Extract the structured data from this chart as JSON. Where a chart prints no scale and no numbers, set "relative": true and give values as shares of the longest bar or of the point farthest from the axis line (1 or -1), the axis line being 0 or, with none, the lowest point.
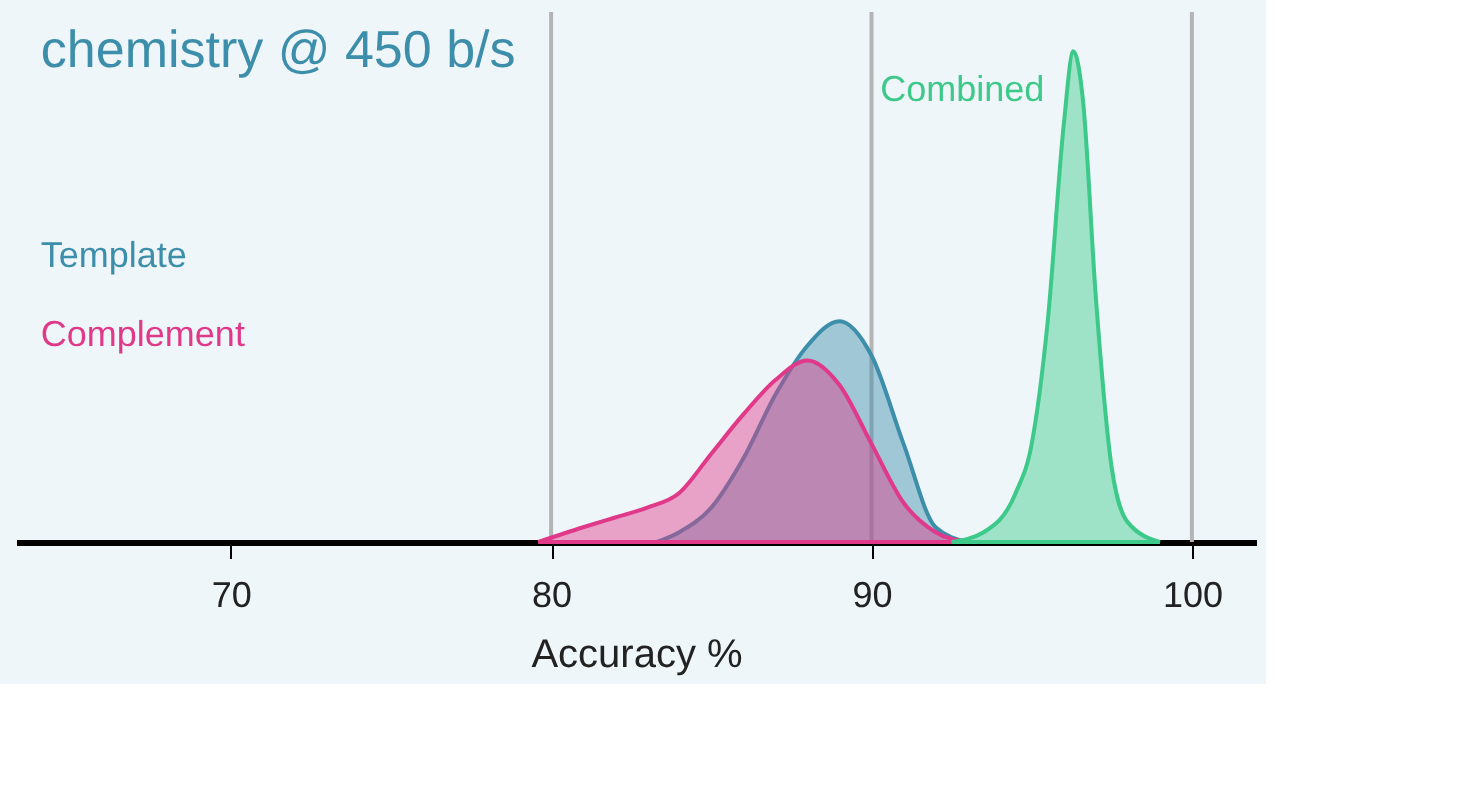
{
  "chart_data": {
    "type": "area",
    "title": "chemistry @ 450 b/s",
    "xlabel": "Accuracy %",
    "relative": true,
    "legend": false,
    "grid": false,
    "xlim": [
      63.3,
      102
    ],
    "xticks": [
      70,
      80,
      90,
      100
    ],
    "ref_lines": [
      {
        "axis": "x",
        "value": 80,
        "color": "#b4b4b4"
      },
      {
        "axis": "x",
        "value": 90,
        "color": "#b4b4b4"
      },
      {
        "axis": "x",
        "value": 100,
        "color": "#b4b4b4"
      }
    ],
    "series": [
      {
        "name": "Template",
        "color": "#3d8eaa",
        "x": [
          83.3,
          84,
          85,
          86,
          87,
          88,
          89,
          90,
          91,
          92,
          93
        ],
        "values": [
          0,
          0.02,
          0.07,
          0.17,
          0.3,
          0.4,
          0.45,
          0.38,
          0.2,
          0.03,
          0
        ]
      },
      {
        "name": "Complement",
        "color": "#e0398a",
        "x": [
          79.6,
          81,
          82,
          83,
          84,
          85,
          86,
          87,
          88,
          89,
          90,
          91,
          92,
          93
        ],
        "values": [
          0,
          0.03,
          0.05,
          0.07,
          0.1,
          0.18,
          0.26,
          0.33,
          0.37,
          0.32,
          0.2,
          0.08,
          0.02,
          0
        ]
      },
      {
        "name": "Combined",
        "color": "#3cc98a",
        "x": [
          92.5,
          93.5,
          94.5,
          95,
          95.5,
          96,
          96.3,
          96.6,
          97,
          97.5,
          98,
          99
        ],
        "values": [
          0,
          0.02,
          0.1,
          0.2,
          0.45,
          0.85,
          1,
          0.9,
          0.5,
          0.15,
          0.04,
          0
        ]
      }
    ]
  }
}
